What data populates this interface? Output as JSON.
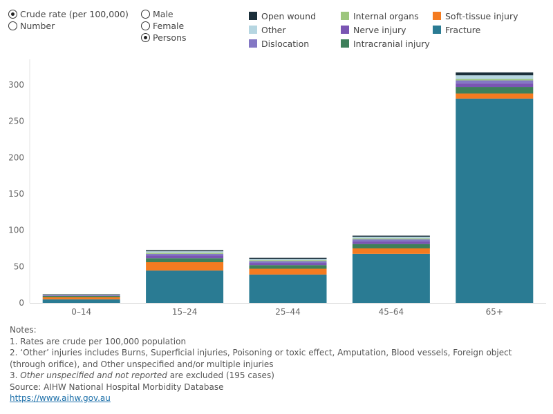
{
  "controls": {
    "measure": {
      "options": [
        {
          "label": "Crude rate (per 100,000)",
          "selected": true
        },
        {
          "label": "Number",
          "selected": false
        }
      ]
    },
    "sex": {
      "options": [
        {
          "label": "Male",
          "selected": false
        },
        {
          "label": "Female",
          "selected": false
        },
        {
          "label": "Persons",
          "selected": true
        }
      ]
    }
  },
  "chart_data": {
    "type": "bar",
    "stacked": true,
    "categories": [
      "0–14",
      "15–24",
      "25–44",
      "45–64",
      "65+"
    ],
    "y_ticks": [
      "0",
      "50",
      "100",
      "150",
      "200",
      "250",
      "300"
    ],
    "ylim": [
      0,
      335
    ],
    "grid": false,
    "legend_position": "top",
    "series": [
      {
        "name": "Fracture",
        "color": "#2a7b93",
        "values": [
          5,
          44.5,
          39,
          67.5,
          281
        ]
      },
      {
        "name": "Soft-tissue injury",
        "color": "#f47b20",
        "values": [
          3,
          11.5,
          8,
          7.5,
          7
        ]
      },
      {
        "name": "Intracranial injury",
        "color": "#3d7f5a",
        "values": [
          1.5,
          5.5,
          5,
          6,
          9
        ]
      },
      {
        "name": "Nerve injury",
        "color": "#7a55b3",
        "values": [
          0.5,
          3.5,
          3,
          3.5,
          5
        ]
      },
      {
        "name": "Dislocation",
        "color": "#8377c4",
        "values": [
          0.5,
          2.5,
          2.5,
          3,
          4
        ]
      },
      {
        "name": "Internal organs",
        "color": "#9dc67d",
        "values": [
          0.3,
          1.5,
          1.2,
          1.3,
          2
        ]
      },
      {
        "name": "Other",
        "color": "#b6d6e1",
        "values": [
          0.6,
          2,
          1.8,
          2.2,
          5
        ]
      },
      {
        "name": "Open wound",
        "color": "#1b2f3a",
        "values": [
          0.6,
          1.5,
          1.5,
          1.5,
          4
        ]
      }
    ],
    "legend_order": [
      "Open wound",
      "Internal organs",
      "Soft-tissue injury",
      "Other",
      "Nerve injury",
      "Fracture",
      "Dislocation",
      "Intracranial injury"
    ]
  },
  "notes": {
    "heading": "Notes:",
    "line1": "1. Rates are crude per 100,000 population",
    "line2": "2. ‘Other’ injuries includes Burns, Superficial injuries, Poisoning or toxic effect, Amputation, Blood vessels, Foreign object (through orifice), and Other unspecified and/or multiple injuries",
    "line3_prefix": "3. ",
    "line3_italic": "Other unspecified and not reported",
    "line3_suffix": " are excluded (195 cases)",
    "source": "Source: AIHW National Hospital Morbidity Database",
    "link": "https://www.aihw.gov.au"
  }
}
